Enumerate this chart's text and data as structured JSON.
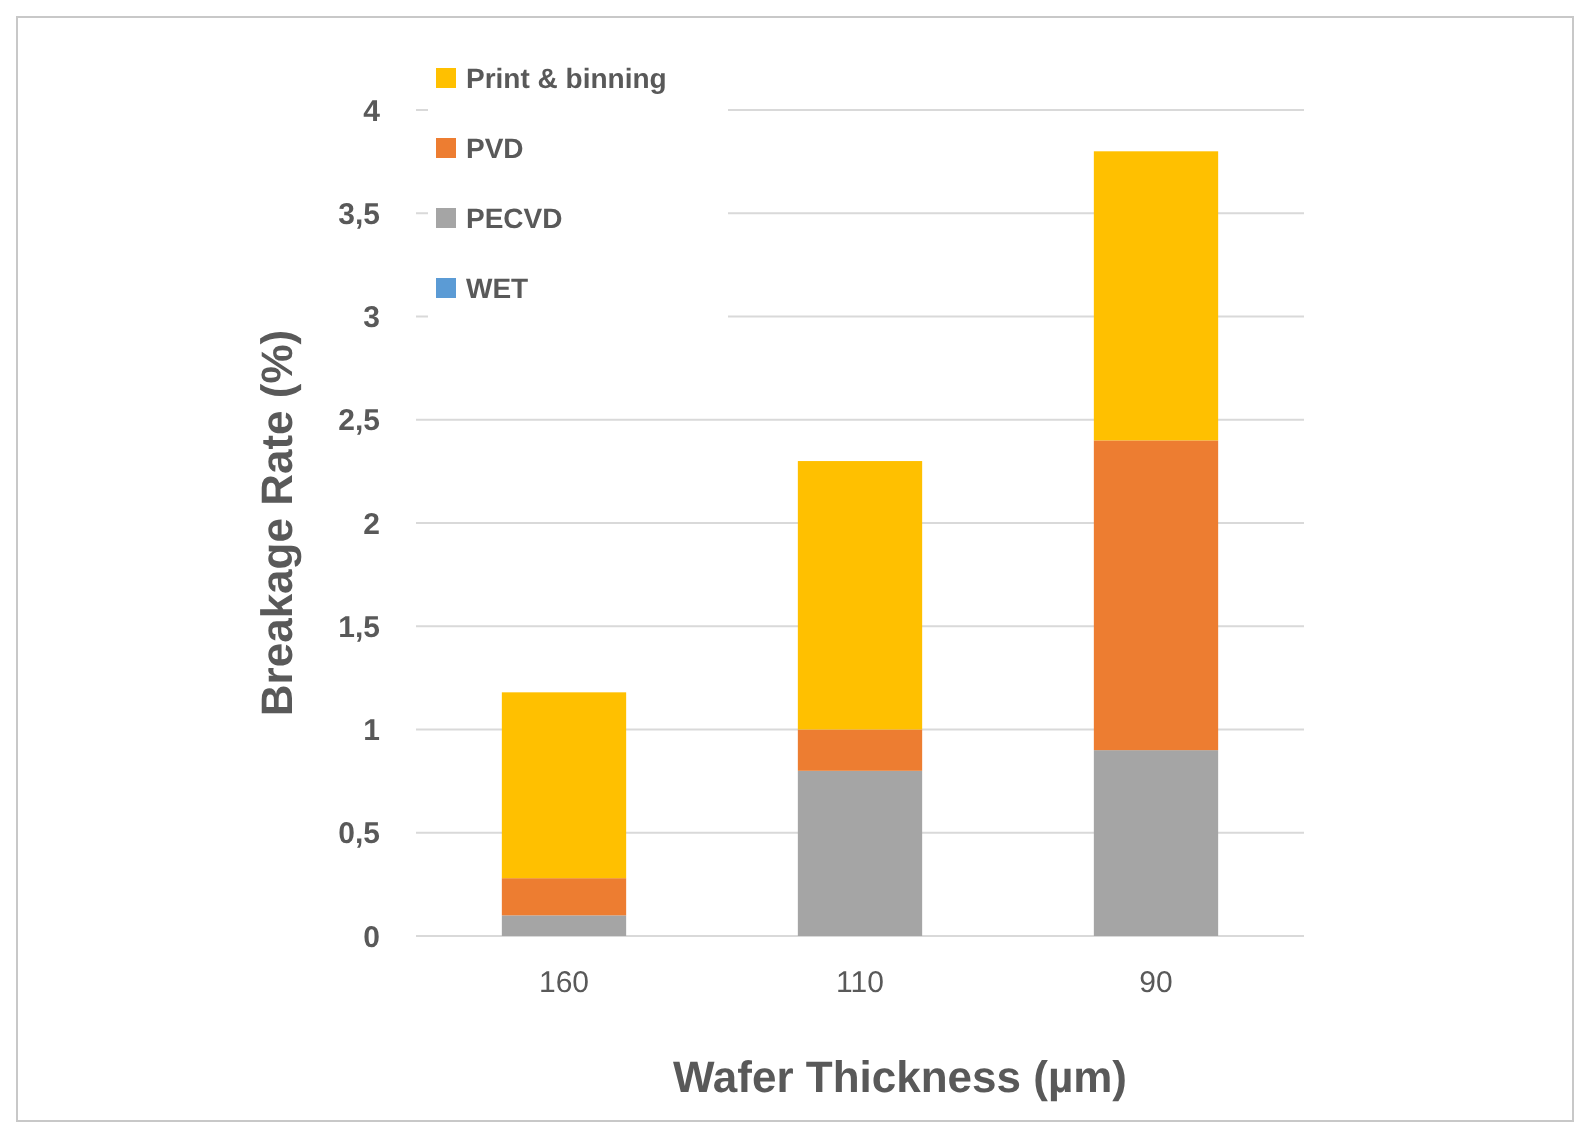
{
  "chart_data": {
    "type": "bar",
    "stacked": true,
    "xlabel": "Wafer Thickness (µm)",
    "ylabel": "Breakage Rate (%)",
    "categories": [
      "160",
      "110",
      "90"
    ],
    "series": [
      {
        "name": "WET",
        "color": "#5b9bd5",
        "values": [
          0,
          0,
          0
        ]
      },
      {
        "name": "PECVD",
        "color": "#a5a5a5",
        "values": [
          0.1,
          0.8,
          0.9
        ]
      },
      {
        "name": "PVD",
        "color": "#ed7d31",
        "values": [
          0.18,
          0.2,
          1.5
        ]
      },
      {
        "name": "Print & binning",
        "color": "#ffc000",
        "values": [
          0.9,
          1.3,
          1.4
        ]
      }
    ],
    "ylim": [
      0,
      4
    ],
    "yticks": [
      0,
      {
        "value": 0.5,
        "label": "0,5"
      },
      1,
      {
        "value": 1.5,
        "label": "1,5"
      },
      2,
      {
        "value": 2.5,
        "label": "2,5"
      },
      3,
      {
        "value": 3.5,
        "label": "3,5"
      },
      4
    ],
    "grid": "y",
    "legend": "top left"
  }
}
